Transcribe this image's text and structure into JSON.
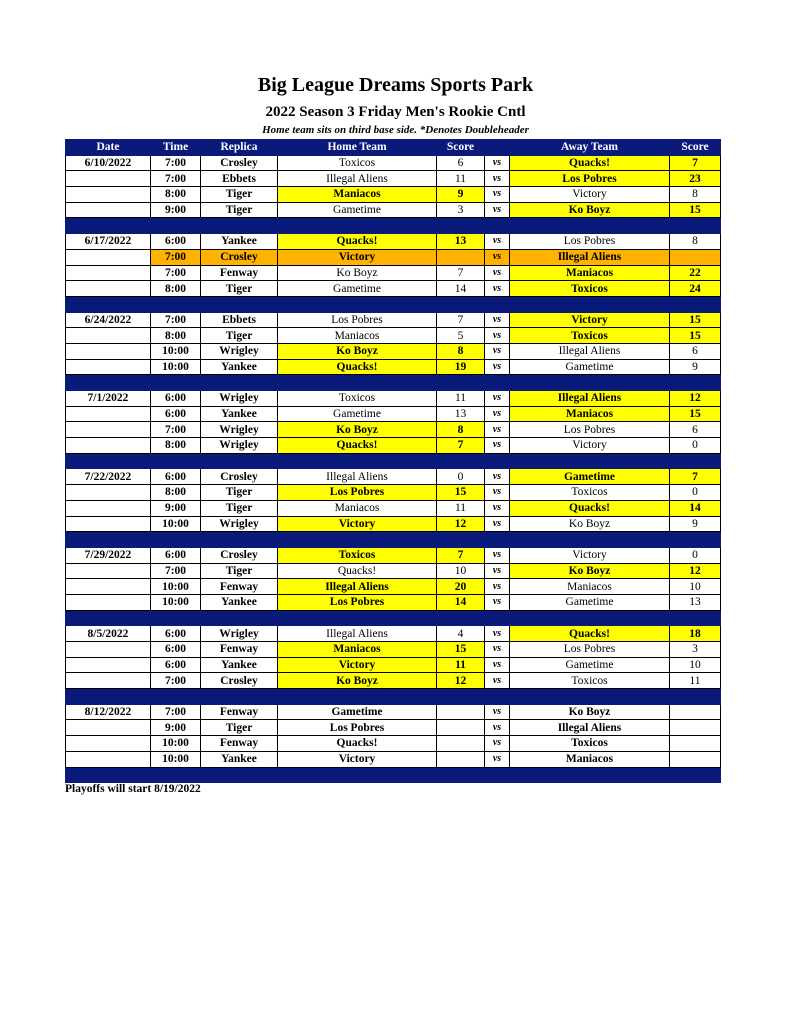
{
  "title": "Big League Dreams Sports Park",
  "subtitle": "2022 Season 3 Friday Men's Rookie Cntl",
  "note": "Home team sits on third base side.  *Denotes Doubleheader",
  "columns": [
    "Date",
    "Time",
    "Replica",
    "Home Team",
    "Score",
    "",
    "Away Team",
    "Score"
  ],
  "vs_label": "vs",
  "colors": {
    "header": "#0a1a7a",
    "winner": "#ffff00",
    "highlight": "#ffb300"
  },
  "weeks": [
    {
      "date": "6/10/2022",
      "games": [
        {
          "time": "7:00",
          "replica": "Crosley",
          "home": "Toxicos",
          "home_score": "6",
          "away": "Quacks!",
          "away_score": "7",
          "winner": "away"
        },
        {
          "time": "7:00",
          "replica": "Ebbets",
          "home": "Illegal Aliens",
          "home_score": "11",
          "away": "Los Pobres",
          "away_score": "23",
          "winner": "away"
        },
        {
          "time": "8:00",
          "replica": "Tiger",
          "home": "Maniacos",
          "home_score": "9",
          "away": "Victory",
          "away_score": "8",
          "winner": "home"
        },
        {
          "time": "9:00",
          "replica": "Tiger",
          "home": "Gametime",
          "home_score": "3",
          "away": "Ko Boyz",
          "away_score": "15",
          "winner": "away"
        }
      ]
    },
    {
      "date": "6/17/2022",
      "games": [
        {
          "time": "6:00",
          "replica": "Yankee",
          "home": "Quacks!",
          "home_score": "13",
          "away": "Los Pobres",
          "away_score": "8",
          "winner": "home"
        },
        {
          "time": "7:00",
          "replica": "Crosley",
          "home": "Victory",
          "home_score": "",
          "away": "Illegal Aliens",
          "away_score": "",
          "winner": "",
          "highlight": "orange"
        },
        {
          "time": "7:00",
          "replica": "Fenway",
          "home": "Ko Boyz",
          "home_score": "7",
          "away": "Maniacos",
          "away_score": "22",
          "winner": "away"
        },
        {
          "time": "8:00",
          "replica": "Tiger",
          "home": "Gametime",
          "home_score": "14",
          "away": "Toxicos",
          "away_score": "24",
          "winner": "away"
        }
      ]
    },
    {
      "date": "6/24/2022",
      "games": [
        {
          "time": "7:00",
          "replica": "Ebbets",
          "home": "Los Pobres",
          "home_score": "7",
          "away": "Victory",
          "away_score": "15",
          "winner": "away"
        },
        {
          "time": "8:00",
          "replica": "Tiger",
          "home": "Maniacos",
          "home_score": "5",
          "away": "Toxicos",
          "away_score": "15",
          "winner": "away"
        },
        {
          "time": "10:00",
          "replica": "Wrigley",
          "home": "Ko Boyz",
          "home_score": "8",
          "away": "Illegal Aliens",
          "away_score": "6",
          "winner": "home"
        },
        {
          "time": "10:00",
          "replica": "Yankee",
          "home": "Quacks!",
          "home_score": "19",
          "away": "Gametime",
          "away_score": "9",
          "winner": "home"
        }
      ]
    },
    {
      "date": "7/1/2022",
      "games": [
        {
          "time": "6:00",
          "replica": "Wrigley",
          "home": "Toxicos",
          "home_score": "11",
          "away": "Illegal Aliens",
          "away_score": "12",
          "winner": "away"
        },
        {
          "time": "6:00",
          "replica": "Yankee",
          "home": "Gametime",
          "home_score": "13",
          "away": "Maniacos",
          "away_score": "15",
          "winner": "away"
        },
        {
          "time": "7:00",
          "replica": "Wrigley",
          "home": "Ko Boyz",
          "home_score": "8",
          "away": "Los Pobres",
          "away_score": "6",
          "winner": "home"
        },
        {
          "time": "8:00",
          "replica": "Wrigley",
          "home": "Quacks!",
          "home_score": "7",
          "away": "Victory",
          "away_score": "0",
          "winner": "home"
        }
      ]
    },
    {
      "date": "7/22/2022",
      "games": [
        {
          "time": "6:00",
          "replica": "Crosley",
          "home": "Illegal Aliens",
          "home_score": "0",
          "away": "Gametime",
          "away_score": "7",
          "winner": "away"
        },
        {
          "time": "8:00",
          "replica": "Tiger",
          "home": "Los Pobres",
          "home_score": "15",
          "away": "Toxicos",
          "away_score": "0",
          "winner": "home"
        },
        {
          "time": "9:00",
          "replica": "Tiger",
          "home": "Maniacos",
          "home_score": "11",
          "away": "Quacks!",
          "away_score": "14",
          "winner": "away"
        },
        {
          "time": "10:00",
          "replica": "Wrigley",
          "home": "Victory",
          "home_score": "12",
          "away": "Ko Boyz",
          "away_score": "9",
          "winner": "home"
        }
      ]
    },
    {
      "date": "7/29/2022",
      "games": [
        {
          "time": "6:00",
          "replica": "Crosley",
          "home": "Toxicos",
          "home_score": "7",
          "away": "Victory",
          "away_score": "0",
          "winner": "home"
        },
        {
          "time": "7:00",
          "replica": "Tiger",
          "home": "Quacks!",
          "home_score": "10",
          "away": "Ko Boyz",
          "away_score": "12",
          "winner": "away"
        },
        {
          "time": "10:00",
          "replica": "Fenway",
          "home": "Illegal Aliens",
          "home_score": "20",
          "away": "Maniacos",
          "away_score": "10",
          "winner": "home"
        },
        {
          "time": "10:00",
          "replica": "Yankee",
          "home": "Los Pobres",
          "home_score": "14",
          "away": "Gametime",
          "away_score": "13",
          "winner": "home"
        }
      ]
    },
    {
      "date": "8/5/2022",
      "games": [
        {
          "time": "6:00",
          "replica": "Wrigley",
          "home": "Illegal Aliens",
          "home_score": "4",
          "away": "Quacks!",
          "away_score": "18",
          "winner": "away"
        },
        {
          "time": "6:00",
          "replica": "Fenway",
          "home": "Maniacos",
          "home_score": "15",
          "away": "Los Pobres",
          "away_score": "3",
          "winner": "home"
        },
        {
          "time": "6:00",
          "replica": "Yankee",
          "home": "Victory",
          "home_score": "11",
          "away": "Gametime",
          "away_score": "10",
          "winner": "home"
        },
        {
          "time": "7:00",
          "replica": "Crosley",
          "home": "Ko Boyz",
          "home_score": "12",
          "away": "Toxicos",
          "away_score": "11",
          "winner": "home"
        }
      ]
    },
    {
      "date": "8/12/2022",
      "unplayed": true,
      "games": [
        {
          "time": "7:00",
          "replica": "Fenway",
          "home": "Gametime",
          "home_score": "",
          "away": "Ko Boyz",
          "away_score": "",
          "winner": ""
        },
        {
          "time": "9:00",
          "replica": "Tiger",
          "home": "Los Pobres",
          "home_score": "",
          "away": "Illegal Aliens",
          "away_score": "",
          "winner": ""
        },
        {
          "time": "10:00",
          "replica": "Fenway",
          "home": "Quacks!",
          "home_score": "",
          "away": "Toxicos",
          "away_score": "",
          "winner": ""
        },
        {
          "time": "10:00",
          "replica": "Yankee",
          "home": "Victory",
          "home_score": "",
          "away": "Maniacos",
          "away_score": "",
          "winner": ""
        }
      ]
    }
  ],
  "footer": "Playoffs will start 8/19/2022"
}
